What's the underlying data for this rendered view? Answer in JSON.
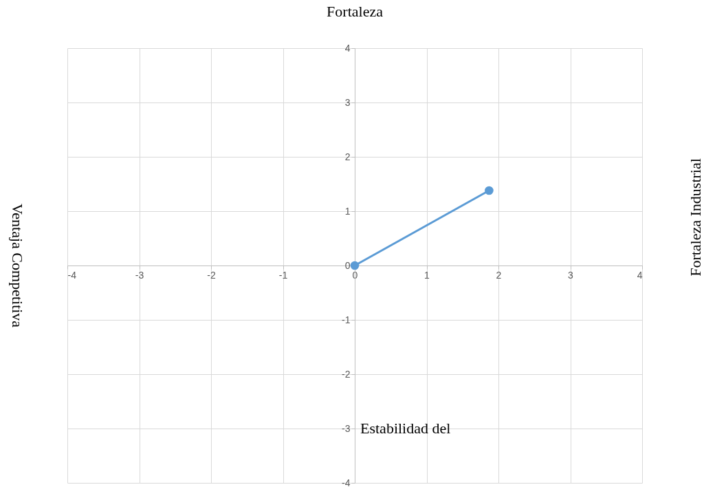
{
  "chart_data": {
    "type": "line",
    "title": "Fortaleza",
    "ylabel": "Ventaja Competitiva",
    "y2label": "Fortaleza Industrial",
    "annotations": [
      "Estabilidad del"
    ],
    "series": [
      {
        "x": [
          0,
          1.87
        ],
        "values": [
          0,
          1.38
        ],
        "color": "#5b9bd5"
      }
    ],
    "xlim": [
      -4,
      4
    ],
    "ylim": [
      -4,
      4
    ],
    "xticks": [
      -4,
      -3,
      -2,
      -1,
      0,
      1,
      2,
      3,
      4
    ],
    "yticks": [
      -4,
      -3,
      -2,
      -1,
      0,
      1,
      2,
      3,
      4
    ],
    "grid": true,
    "marker": "circle",
    "line_style": "solid"
  }
}
